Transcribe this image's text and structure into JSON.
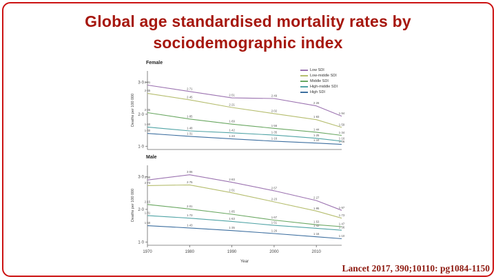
{
  "slide": {
    "title_line1": "Global age standardised mortality rates by",
    "title_line2": "sociodemographic index",
    "title_color": "#a6170e",
    "citation": "Lancet 2017, 390;10110: pg1084-1150",
    "citation_color": "#8e1a10",
    "frame_color": "#cc1111"
  },
  "chart_data": [
    {
      "type": "line",
      "title": "Female",
      "ylabel": "Deaths per 100 000",
      "xlabel": "",
      "x": [
        1970,
        1980,
        1990,
        2000,
        2010,
        2016
      ],
      "ylim": [
        0.9,
        3.35
      ],
      "ytick_values": [
        3.0,
        2.0,
        1.0
      ],
      "ytick_labels": [
        "3·0",
        "2·0",
        "1·0"
      ],
      "xtick_values": [
        1970,
        1980,
        1990,
        2000,
        2010
      ],
      "xtick_labels": [
        "1970",
        "1980",
        "1990",
        "2000",
        "2010"
      ],
      "show_xticks": false,
      "grid": false,
      "legend_position": "top-right",
      "series": [
        {
          "name": "Low SDI",
          "color": "#9b72b0",
          "values": [
            2.91,
            2.71,
            2.51,
            2.49,
            2.26,
            1.94
          ]
        },
        {
          "name": "Low-middle SDI",
          "color": "#b5bd6e",
          "values": [
            2.65,
            2.45,
            2.21,
            2.02,
            1.83,
            1.59
          ]
        },
        {
          "name": "Middle SDI",
          "color": "#69a761",
          "values": [
            2.05,
            1.85,
            1.69,
            1.56,
            1.44,
            1.34
          ]
        },
        {
          "name": "High-middle SDI",
          "color": "#4fa3a5",
          "values": [
            1.6,
            1.48,
            1.42,
            1.35,
            1.25,
            1.16
          ]
        },
        {
          "name": "High SDI",
          "color": "#3c6e9f",
          "values": [
            1.4,
            1.31,
            1.23,
            1.16,
            1.1,
            1.06
          ]
        }
      ]
    },
    {
      "type": "line",
      "title": "Male",
      "ylabel": "Deaths per 100 000",
      "xlabel": "Year",
      "x": [
        1970,
        1980,
        1990,
        2000,
        2010,
        2016
      ],
      "ylim": [
        0.9,
        3.35
      ],
      "ytick_values": [
        3.0,
        2.0,
        1.0
      ],
      "ytick_labels": [
        "3·0",
        "2·0",
        "1·0"
      ],
      "xtick_values": [
        1970,
        1980,
        1990,
        2000,
        2010
      ],
      "xtick_labels": [
        "1970",
        "1980",
        "1990",
        "2000",
        "2010"
      ],
      "show_xticks": true,
      "grid": false,
      "legend_position": "none",
      "series": [
        {
          "name": "Low SDI",
          "color": "#9b72b0",
          "values": [
            2.9,
            3.06,
            2.83,
            2.57,
            2.27,
            1.97
          ]
        },
        {
          "name": "Low-middle SDI",
          "color": "#b5bd6e",
          "values": [
            2.73,
            2.75,
            2.51,
            2.23,
            1.95,
            1.73
          ]
        },
        {
          "name": "Middle SDI",
          "color": "#69a761",
          "values": [
            2.15,
            2.01,
            1.85,
            1.67,
            1.53,
            1.47
          ]
        },
        {
          "name": "High-middle SDI",
          "color": "#4fa3a5",
          "values": [
            1.81,
            1.73,
            1.63,
            1.51,
            1.42,
            1.36
          ]
        },
        {
          "name": "High SDI",
          "color": "#3c6e9f",
          "values": [
            1.5,
            1.43,
            1.35,
            1.26,
            1.16,
            1.1
          ]
        }
      ]
    }
  ]
}
